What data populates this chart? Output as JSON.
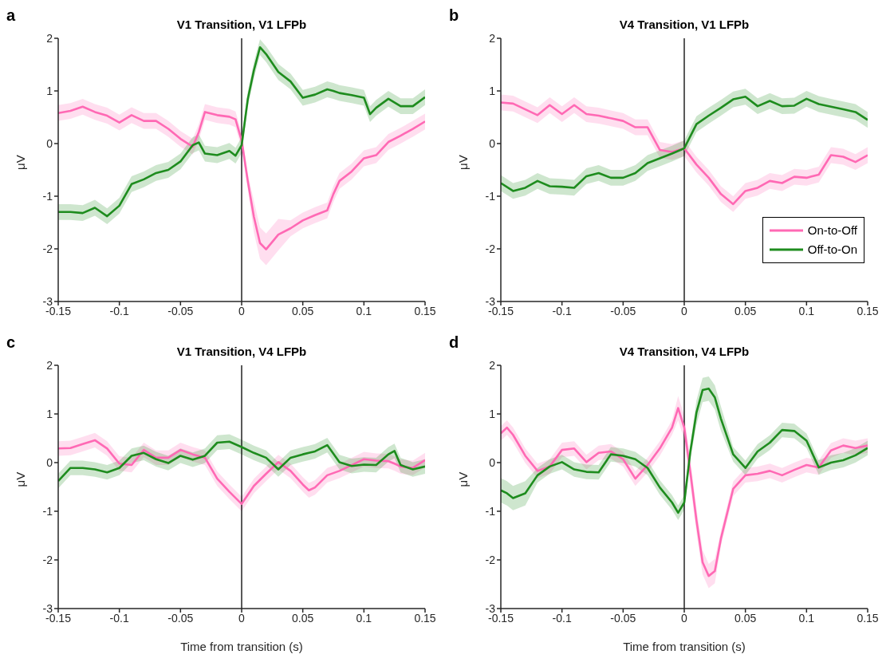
{
  "chart_data": [
    {
      "type": "line",
      "title": "V1 Transition, V1 LFPb",
      "ylabel": "μV",
      "annotations": [
        "a"
      ],
      "xlim": [
        -0.15,
        0.15
      ],
      "xticks": [
        -0.15,
        -0.1,
        -0.05,
        0,
        0.05,
        0.1,
        0.15
      ],
      "ylim": [
        -3,
        2
      ],
      "yticks": [
        -3,
        -2,
        -1,
        0,
        1,
        2
      ],
      "ref_lines": [
        {
          "axis": "x",
          "value": 0,
          "color": "#000000"
        }
      ],
      "x": [
        -0.15,
        -0.14,
        -0.13,
        -0.12,
        -0.11,
        -0.1,
        -0.09,
        -0.08,
        -0.07,
        -0.06,
        -0.05,
        -0.04,
        -0.035,
        -0.03,
        -0.02,
        -0.01,
        -0.005,
        0,
        0.005,
        0.01,
        0.015,
        0.02,
        0.03,
        0.04,
        0.05,
        0.06,
        0.07,
        0.075,
        0.08,
        0.09,
        0.1,
        0.105,
        0.11,
        0.12,
        0.13,
        0.14,
        0.15
      ],
      "series": [
        {
          "color": "#ff69b4",
          "values": [
            0.58,
            0.62,
            0.7,
            0.6,
            0.53,
            0.4,
            0.54,
            0.43,
            0.43,
            0.28,
            0.09,
            -0.06,
            0.22,
            0.6,
            0.54,
            0.51,
            0.46,
            0.06,
            -0.71,
            -1.39,
            -1.89,
            -2.01,
            -1.73,
            -1.61,
            -1.46,
            -1.36,
            -1.27,
            -0.96,
            -0.71,
            -0.53,
            -0.28,
            -0.25,
            -0.22,
            0.03,
            0.15,
            0.28,
            0.42
          ],
          "lower": [
            0.43,
            0.47,
            0.55,
            0.45,
            0.38,
            0.25,
            0.39,
            0.28,
            0.28,
            0.13,
            -0.06,
            -0.21,
            0.07,
            0.45,
            0.39,
            0.36,
            0.31,
            -0.09,
            -0.86,
            -1.69,
            -2.19,
            -2.31,
            -2.03,
            -1.76,
            -1.61,
            -1.51,
            -1.42,
            -1.11,
            -0.86,
            -0.68,
            -0.43,
            -0.4,
            -0.37,
            -0.12,
            0,
            0.13,
            0.27
          ],
          "upper": [
            0.73,
            0.77,
            0.85,
            0.75,
            0.68,
            0.55,
            0.69,
            0.58,
            0.58,
            0.43,
            0.24,
            0.09,
            0.37,
            0.75,
            0.69,
            0.66,
            0.61,
            0.21,
            -0.56,
            -1.09,
            -1.59,
            -1.71,
            -1.43,
            -1.46,
            -1.31,
            -1.21,
            -1.12,
            -0.81,
            -0.56,
            -0.38,
            -0.13,
            -0.1,
            -0.07,
            0.18,
            0.3,
            0.43,
            0.57
          ]
        },
        {
          "color": "#1e8c1e",
          "values": [
            -1.3,
            -1.3,
            -1.32,
            -1.22,
            -1.38,
            -1.18,
            -0.77,
            -0.68,
            -0.56,
            -0.5,
            -0.34,
            -0.03,
            0.02,
            -0.19,
            -0.22,
            -0.14,
            -0.23,
            -0.03,
            0.84,
            1.39,
            1.83,
            1.7,
            1.36,
            1.18,
            0.87,
            0.93,
            1.03,
            1.0,
            0.96,
            0.92,
            0.87,
            0.56,
            0.68,
            0.85,
            0.71,
            0.71,
            0.88
          ],
          "lower": [
            -1.45,
            -1.45,
            -1.47,
            -1.37,
            -1.53,
            -1.33,
            -0.92,
            -0.83,
            -0.71,
            -0.65,
            -0.49,
            -0.18,
            -0.13,
            -0.34,
            -0.37,
            -0.29,
            -0.38,
            -0.18,
            0.69,
            1.24,
            1.68,
            1.55,
            1.21,
            1.03,
            0.72,
            0.78,
            0.88,
            0.85,
            0.81,
            0.77,
            0.72,
            0.41,
            0.53,
            0.7,
            0.56,
            0.56,
            0.73
          ],
          "upper": [
            -1.15,
            -1.15,
            -1.17,
            -1.07,
            -1.23,
            -1.03,
            -0.62,
            -0.53,
            -0.41,
            -0.35,
            -0.19,
            0.12,
            0.17,
            -0.04,
            -0.07,
            0.01,
            -0.08,
            0.12,
            0.99,
            1.54,
            1.98,
            1.85,
            1.51,
            1.33,
            1.02,
            1.08,
            1.18,
            1.15,
            1.11,
            1.07,
            1.02,
            0.71,
            0.83,
            1.0,
            0.86,
            0.86,
            1.03
          ]
        }
      ]
    },
    {
      "type": "line",
      "title": "V4 Transition, V1 LFPb",
      "ylabel": "μV",
      "annotations": [
        "b"
      ],
      "legend": "bottom right",
      "xlim": [
        -0.15,
        0.15
      ],
      "xticks": [
        -0.15,
        -0.1,
        -0.05,
        0,
        0.05,
        0.1,
        0.15
      ],
      "ylim": [
        -3,
        2
      ],
      "yticks": [
        -3,
        -2,
        -1,
        0,
        1,
        2
      ],
      "ref_lines": [
        {
          "axis": "x",
          "value": 0,
          "color": "#000000"
        }
      ],
      "x": [
        -0.15,
        -0.14,
        -0.13,
        -0.12,
        -0.11,
        -0.1,
        -0.09,
        -0.08,
        -0.07,
        -0.06,
        -0.05,
        -0.04,
        -0.03,
        -0.02,
        -0.01,
        0,
        0.01,
        0.02,
        0.03,
        0.04,
        0.05,
        0.06,
        0.07,
        0.08,
        0.09,
        0.1,
        0.11,
        0.12,
        0.13,
        0.14,
        0.15
      ],
      "series": [
        {
          "name": "On-to-Off",
          "color": "#ff69b4",
          "values": [
            0.78,
            0.76,
            0.65,
            0.54,
            0.73,
            0.56,
            0.73,
            0.56,
            0.53,
            0.48,
            0.43,
            0.31,
            0.31,
            -0.12,
            -0.16,
            -0.09,
            -0.4,
            -0.65,
            -0.96,
            -1.15,
            -0.9,
            -0.84,
            -0.71,
            -0.75,
            -0.63,
            -0.65,
            -0.59,
            -0.22,
            -0.25,
            -0.35,
            -0.22
          ],
          "lower": [
            0.63,
            0.61,
            0.5,
            0.39,
            0.58,
            0.41,
            0.58,
            0.41,
            0.38,
            0.33,
            0.28,
            0.16,
            0.16,
            -0.27,
            -0.31,
            -0.24,
            -0.55,
            -0.8,
            -1.11,
            -1.3,
            -1.05,
            -0.99,
            -0.86,
            -0.9,
            -0.78,
            -0.8,
            -0.74,
            -0.37,
            -0.4,
            -0.5,
            -0.37
          ],
          "upper": [
            0.93,
            0.91,
            0.8,
            0.69,
            0.88,
            0.71,
            0.88,
            0.71,
            0.68,
            0.63,
            0.58,
            0.46,
            0.46,
            0.03,
            -0.01,
            0.06,
            -0.25,
            -0.5,
            -0.81,
            -1.0,
            -0.75,
            -0.69,
            -0.56,
            -0.6,
            -0.48,
            -0.5,
            -0.44,
            -0.07,
            -0.1,
            -0.2,
            -0.07
          ]
        },
        {
          "name": "Off-to-On",
          "color": "#1e8c1e",
          "values": [
            -0.75,
            -0.9,
            -0.84,
            -0.71,
            -0.81,
            -0.82,
            -0.84,
            -0.62,
            -0.56,
            -0.65,
            -0.65,
            -0.56,
            -0.37,
            -0.28,
            -0.19,
            -0.09,
            0.37,
            0.53,
            0.68,
            0.84,
            0.89,
            0.71,
            0.81,
            0.71,
            0.72,
            0.85,
            0.75,
            0.7,
            0.65,
            0.6,
            0.45
          ],
          "lower": [
            -0.9,
            -1.05,
            -0.99,
            -0.86,
            -0.96,
            -0.97,
            -0.99,
            -0.77,
            -0.71,
            -0.8,
            -0.8,
            -0.71,
            -0.52,
            -0.43,
            -0.34,
            -0.24,
            0.22,
            0.38,
            0.53,
            0.69,
            0.74,
            0.56,
            0.66,
            0.56,
            0.57,
            0.7,
            0.6,
            0.55,
            0.5,
            0.45,
            0.3
          ],
          "upper": [
            -0.6,
            -0.75,
            -0.69,
            -0.56,
            -0.66,
            -0.67,
            -0.69,
            -0.47,
            -0.41,
            -0.5,
            -0.5,
            -0.41,
            -0.22,
            -0.13,
            -0.04,
            0.06,
            0.52,
            0.68,
            0.83,
            0.99,
            1.04,
            0.86,
            0.96,
            0.86,
            0.87,
            1.0,
            0.9,
            0.85,
            0.8,
            0.75,
            0.6
          ]
        }
      ]
    },
    {
      "type": "line",
      "title": "V1 Transition, V4 LFPb",
      "xlabel": "Time from transition (s)",
      "ylabel": "μV",
      "annotations": [
        "c"
      ],
      "xlim": [
        -0.15,
        0.15
      ],
      "xticks": [
        -0.15,
        -0.1,
        -0.05,
        0,
        0.05,
        0.1,
        0.15
      ],
      "ylim": [
        -3,
        2
      ],
      "yticks": [
        -3,
        -2,
        -1,
        0,
        1,
        2
      ],
      "ref_lines": [
        {
          "axis": "x",
          "value": 0,
          "color": "#000000"
        }
      ],
      "x": [
        -0.15,
        -0.14,
        -0.13,
        -0.12,
        -0.11,
        -0.1,
        -0.09,
        -0.08,
        -0.07,
        -0.06,
        -0.05,
        -0.04,
        -0.03,
        -0.02,
        -0.01,
        0,
        0.01,
        0.02,
        0.03,
        0.04,
        0.05,
        0.055,
        0.06,
        0.07,
        0.08,
        0.09,
        0.1,
        0.11,
        0.12,
        0.125,
        0.13,
        0.14,
        0.15
      ],
      "series": [
        {
          "color": "#ff69b4",
          "values": [
            0.29,
            0.3,
            0.38,
            0.46,
            0.29,
            -0.02,
            -0.05,
            0.26,
            0.1,
            0.1,
            0.26,
            0.17,
            0.1,
            -0.33,
            -0.6,
            -0.85,
            -0.48,
            -0.23,
            0.01,
            -0.17,
            -0.45,
            -0.57,
            -0.51,
            -0.26,
            -0.17,
            -0.05,
            0.07,
            0.04,
            0.03,
            -0.02,
            -0.08,
            -0.11,
            0.05
          ],
          "lower": [
            0.14,
            0.15,
            0.23,
            0.31,
            0.14,
            -0.17,
            -0.2,
            0.11,
            -0.05,
            -0.05,
            0.11,
            0.02,
            -0.05,
            -0.48,
            -0.75,
            -1.0,
            -0.63,
            -0.38,
            -0.14,
            -0.32,
            -0.6,
            -0.72,
            -0.66,
            -0.41,
            -0.32,
            -0.2,
            -0.08,
            -0.11,
            -0.12,
            -0.17,
            -0.23,
            -0.26,
            -0.1
          ],
          "upper": [
            0.44,
            0.45,
            0.53,
            0.61,
            0.44,
            0.13,
            0.1,
            0.41,
            0.25,
            0.25,
            0.41,
            0.32,
            0.25,
            -0.18,
            -0.45,
            -0.7,
            -0.33,
            -0.08,
            0.16,
            -0.02,
            -0.3,
            -0.42,
            -0.36,
            -0.11,
            -0.02,
            0.1,
            0.22,
            0.19,
            0.18,
            0.13,
            0.07,
            0.04,
            0.2
          ]
        },
        {
          "color": "#1e8c1e",
          "values": [
            -0.38,
            -0.11,
            -0.11,
            -0.14,
            -0.2,
            -0.11,
            0.14,
            0.2,
            0.07,
            -0.01,
            0.14,
            0.06,
            0.14,
            0.41,
            0.43,
            0.32,
            0.2,
            0.1,
            -0.14,
            0.1,
            0.17,
            0.2,
            0.23,
            0.36,
            0.01,
            -0.07,
            -0.04,
            -0.05,
            0.17,
            0.24,
            -0.05,
            -0.14,
            -0.08
          ],
          "lower": [
            -0.53,
            -0.26,
            -0.26,
            -0.29,
            -0.35,
            -0.26,
            -0.01,
            0.05,
            -0.08,
            -0.16,
            -0.01,
            -0.09,
            -0.01,
            0.26,
            0.28,
            0.17,
            0.05,
            -0.05,
            -0.29,
            -0.05,
            0.02,
            0.05,
            0.08,
            0.21,
            -0.14,
            -0.22,
            -0.19,
            -0.2,
            0.02,
            0.09,
            -0.2,
            -0.29,
            -0.23
          ],
          "upper": [
            -0.23,
            0.04,
            0.04,
            0.01,
            -0.05,
            0.04,
            0.29,
            0.35,
            0.22,
            0.14,
            0.29,
            0.21,
            0.29,
            0.56,
            0.58,
            0.47,
            0.35,
            0.25,
            0.01,
            0.25,
            0.32,
            0.35,
            0.38,
            0.51,
            0.16,
            0.08,
            0.11,
            0.1,
            0.32,
            0.39,
            0.1,
            0.01,
            0.07
          ]
        }
      ]
    },
    {
      "type": "line",
      "title": "V4 Transition, V4 LFPb",
      "xlabel": "Time from transition (s)",
      "ylabel": "μV",
      "annotations": [
        "d"
      ],
      "xlim": [
        -0.15,
        0.15
      ],
      "xticks": [
        -0.15,
        -0.1,
        -0.05,
        0,
        0.05,
        0.1,
        0.15
      ],
      "ylim": [
        -3,
        2
      ],
      "yticks": [
        -3,
        -2,
        -1,
        0,
        1,
        2
      ],
      "ref_lines": [
        {
          "axis": "x",
          "value": 0,
          "color": "#000000"
        }
      ],
      "x": [
        -0.15,
        -0.145,
        -0.14,
        -0.13,
        -0.12,
        -0.11,
        -0.1,
        -0.09,
        -0.08,
        -0.07,
        -0.06,
        -0.05,
        -0.04,
        -0.03,
        -0.02,
        -0.01,
        -0.005,
        0,
        0.005,
        0.01,
        0.015,
        0.02,
        0.025,
        0.03,
        0.04,
        0.05,
        0.06,
        0.07,
        0.08,
        0.09,
        0.1,
        0.11,
        0.12,
        0.13,
        0.14,
        0.15
      ],
      "series": [
        {
          "color": "#ff69b4",
          "values": [
            0.6,
            0.72,
            0.57,
            0.14,
            -0.17,
            -0.08,
            0.26,
            0.29,
            0.01,
            0.2,
            0.23,
            0.07,
            -0.33,
            -0.05,
            0.29,
            0.72,
            1.12,
            0.72,
            -0.2,
            -1.19,
            -2.05,
            -2.33,
            -2.23,
            -1.56,
            -0.54,
            -0.26,
            -0.23,
            -0.17,
            -0.26,
            -0.15,
            -0.05,
            -0.1,
            0.25,
            0.35,
            0.3,
            0.35
          ],
          "lower": [
            0.45,
            0.57,
            0.42,
            -0.01,
            -0.32,
            -0.23,
            0.11,
            0.14,
            -0.14,
            0.05,
            0.08,
            -0.08,
            -0.48,
            -0.2,
            0.14,
            0.57,
            0.87,
            0.47,
            -0.45,
            -1.44,
            -2.3,
            -2.58,
            -2.48,
            -1.71,
            -0.69,
            -0.41,
            -0.38,
            -0.32,
            -0.41,
            -0.3,
            -0.2,
            -0.25,
            0.1,
            0.2,
            0.15,
            0.2
          ],
          "upper": [
            0.75,
            0.87,
            0.72,
            0.29,
            -0.02,
            0.07,
            0.41,
            0.44,
            0.16,
            0.35,
            0.38,
            0.22,
            -0.18,
            0.1,
            0.44,
            0.87,
            1.37,
            0.97,
            0.05,
            -0.94,
            -1.8,
            -2.08,
            -1.98,
            -1.41,
            -0.39,
            -0.11,
            -0.08,
            -0.02,
            -0.11,
            0,
            0.1,
            0.05,
            0.4,
            0.5,
            0.45,
            0.5
          ]
        },
        {
          "color": "#1e8c1e",
          "values": [
            -0.57,
            -0.63,
            -0.73,
            -0.63,
            -0.26,
            -0.08,
            0.01,
            -0.14,
            -0.19,
            -0.2,
            0.17,
            0.14,
            0.07,
            -0.11,
            -0.51,
            -0.82,
            -1.03,
            -0.82,
            0.23,
            1.03,
            1.49,
            1.52,
            1.34,
            0.9,
            0.17,
            -0.11,
            0.23,
            0.41,
            0.67,
            0.65,
            0.45,
            -0.1,
            0.0,
            0.05,
            0.15,
            0.3
          ],
          "lower": [
            -0.82,
            -0.88,
            -0.98,
            -0.88,
            -0.41,
            -0.23,
            -0.14,
            -0.29,
            -0.34,
            -0.35,
            0.02,
            -0.01,
            -0.08,
            -0.26,
            -0.66,
            -0.97,
            -1.18,
            -0.97,
            0.08,
            0.78,
            1.24,
            1.27,
            1.09,
            0.65,
            0.02,
            -0.26,
            0.08,
            0.26,
            0.52,
            0.5,
            0.3,
            -0.25,
            -0.15,
            -0.1,
            0,
            0.15
          ],
          "upper": [
            -0.32,
            -0.38,
            -0.48,
            -0.38,
            -0.11,
            0.07,
            0.16,
            0.01,
            -0.04,
            -0.05,
            0.32,
            0.29,
            0.22,
            0.04,
            -0.36,
            -0.67,
            -0.88,
            -0.67,
            0.38,
            1.28,
            1.74,
            1.77,
            1.59,
            1.15,
            0.32,
            0.04,
            0.38,
            0.56,
            0.82,
            0.8,
            0.6,
            0.05,
            0.15,
            0.2,
            0.3,
            0.45
          ]
        }
      ]
    }
  ]
}
